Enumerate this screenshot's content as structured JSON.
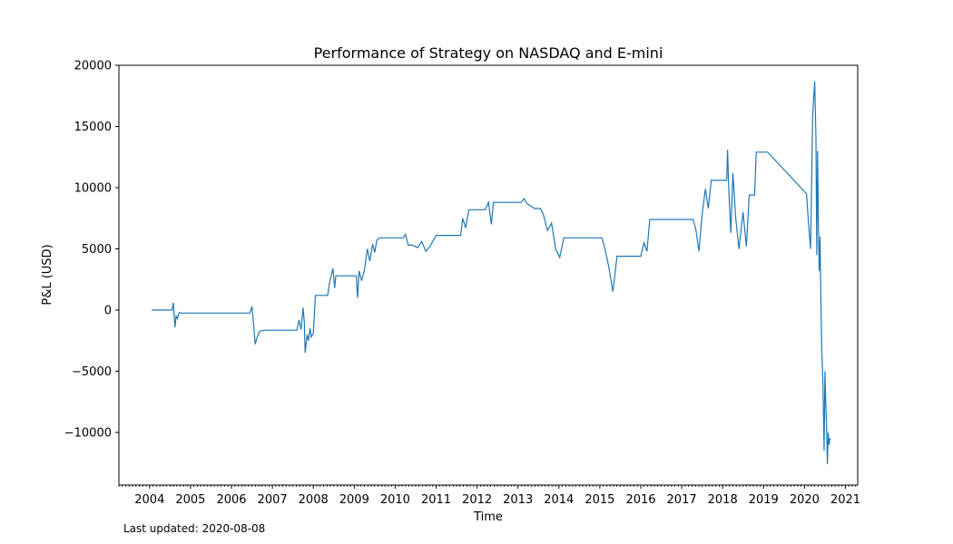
{
  "chart_data": {
    "type": "line",
    "title": "Performance of Strategy on NASDAQ and E-mini",
    "xlabel": "Time",
    "ylabel": "P&L (USD)",
    "xlim": [
      2003.25,
      2021.3
    ],
    "ylim": [
      -14300,
      20000
    ],
    "x_ticks": [
      2004,
      2005,
      2006,
      2007,
      2008,
      2009,
      2010,
      2011,
      2012,
      2013,
      2014,
      2015,
      2016,
      2017,
      2018,
      2019,
      2020,
      2021
    ],
    "y_ticks": [
      -10000,
      -5000,
      0,
      5000,
      10000,
      15000,
      20000
    ],
    "grid": false,
    "line_color": "#1f77b4",
    "series": [
      {
        "x": [
          2004.05,
          2004.55,
          2004.58,
          2004.6,
          2004.62,
          2004.65,
          2004.68,
          2004.72,
          2004.78,
          2006.45,
          2006.5,
          2006.55,
          2006.58,
          2006.62,
          2006.68,
          2006.72,
          2006.8,
          2007.6,
          2007.65,
          2007.7,
          2007.75,
          2007.78,
          2007.8,
          2007.85,
          2007.88,
          2007.92,
          2007.95,
          2008.0,
          2008.05,
          2008.35,
          2008.4,
          2008.48,
          2008.52,
          2008.55,
          2008.62,
          2009.05,
          2009.08,
          2009.12,
          2009.18,
          2009.25,
          2009.32,
          2009.38,
          2009.45,
          2009.5,
          2009.55,
          2009.62,
          2009.68,
          2009.75,
          2010.2,
          2010.25,
          2010.32,
          2010.42,
          2010.55,
          2010.65,
          2010.75,
          2010.85,
          2011.0,
          2011.6,
          2011.65,
          2011.72,
          2011.8,
          2012.2,
          2012.28,
          2012.35,
          2012.4,
          2012.55,
          2013.08,
          2013.15,
          2013.22,
          2013.4,
          2013.55,
          2013.62,
          2013.72,
          2013.82,
          2013.92,
          2014.02,
          2014.12,
          2014.2,
          2014.25,
          2015.05,
          2015.12,
          2015.22,
          2015.32,
          2015.42,
          2015.52,
          2015.62,
          2016.0,
          2016.08,
          2016.15,
          2016.22,
          2016.32,
          2017.28,
          2017.35,
          2017.42,
          2017.5,
          2017.58,
          2017.65,
          2017.72,
          2017.82,
          2018.1,
          2018.12,
          2018.15,
          2018.2,
          2018.25,
          2018.32,
          2018.4,
          2018.5,
          2018.58,
          2018.65,
          2018.7,
          2018.78,
          2018.82,
          2019.05,
          2019.1,
          2020.05,
          2020.1,
          2020.15,
          2020.2,
          2020.25,
          2020.28,
          2020.3,
          2020.32,
          2020.34,
          2020.36,
          2020.38,
          2020.4,
          2020.42,
          2020.45,
          2020.48,
          2020.5,
          2020.52,
          2020.54,
          2020.56,
          2020.58,
          2020.6,
          2020.62,
          2020.63
        ],
        "y": [
          0,
          0,
          600,
          -500,
          -1400,
          -500,
          -700,
          -200,
          -250,
          -250,
          300,
          -1500,
          -2800,
          -2300,
          -1800,
          -1700,
          -1650,
          -1650,
          -800,
          -1600,
          200,
          -1000,
          -3500,
          -2000,
          -2500,
          -1500,
          -2200,
          -1900,
          1200,
          1200,
          2300,
          3400,
          1800,
          2800,
          2800,
          2800,
          1000,
          3200,
          2400,
          3300,
          5000,
          4000,
          5400,
          4700,
          5700,
          5900,
          5900,
          5900,
          5900,
          6200,
          5300,
          5300,
          5100,
          5600,
          4800,
          5200,
          6100,
          6100,
          7500,
          6700,
          8200,
          8200,
          8800,
          7000,
          8800,
          8800,
          8800,
          9100,
          8700,
          8300,
          8300,
          7800,
          6500,
          7100,
          5000,
          4300,
          5900,
          5900,
          5900,
          5900,
          5100,
          3500,
          1500,
          4400,
          4400,
          4400,
          4400,
          5500,
          4800,
          7400,
          7400,
          7400,
          6500,
          4800,
          7800,
          9900,
          8300,
          10600,
          10600,
          10600,
          13100,
          10000,
          6300,
          11200,
          7500,
          5000,
          8000,
          5200,
          9400,
          9400,
          9400,
          12900,
          12900,
          12900,
          9500,
          7000,
          5000,
          16000,
          18700,
          14000,
          4500,
          13000,
          7000,
          3200,
          6000,
          1000,
          -3000,
          -6000,
          -11500,
          -5000,
          -7500,
          -9500,
          -12600,
          -10000,
          -11000,
          -10500,
          -10600
        ]
      }
    ],
    "footnote": "Last updated: 2020-08-08"
  }
}
